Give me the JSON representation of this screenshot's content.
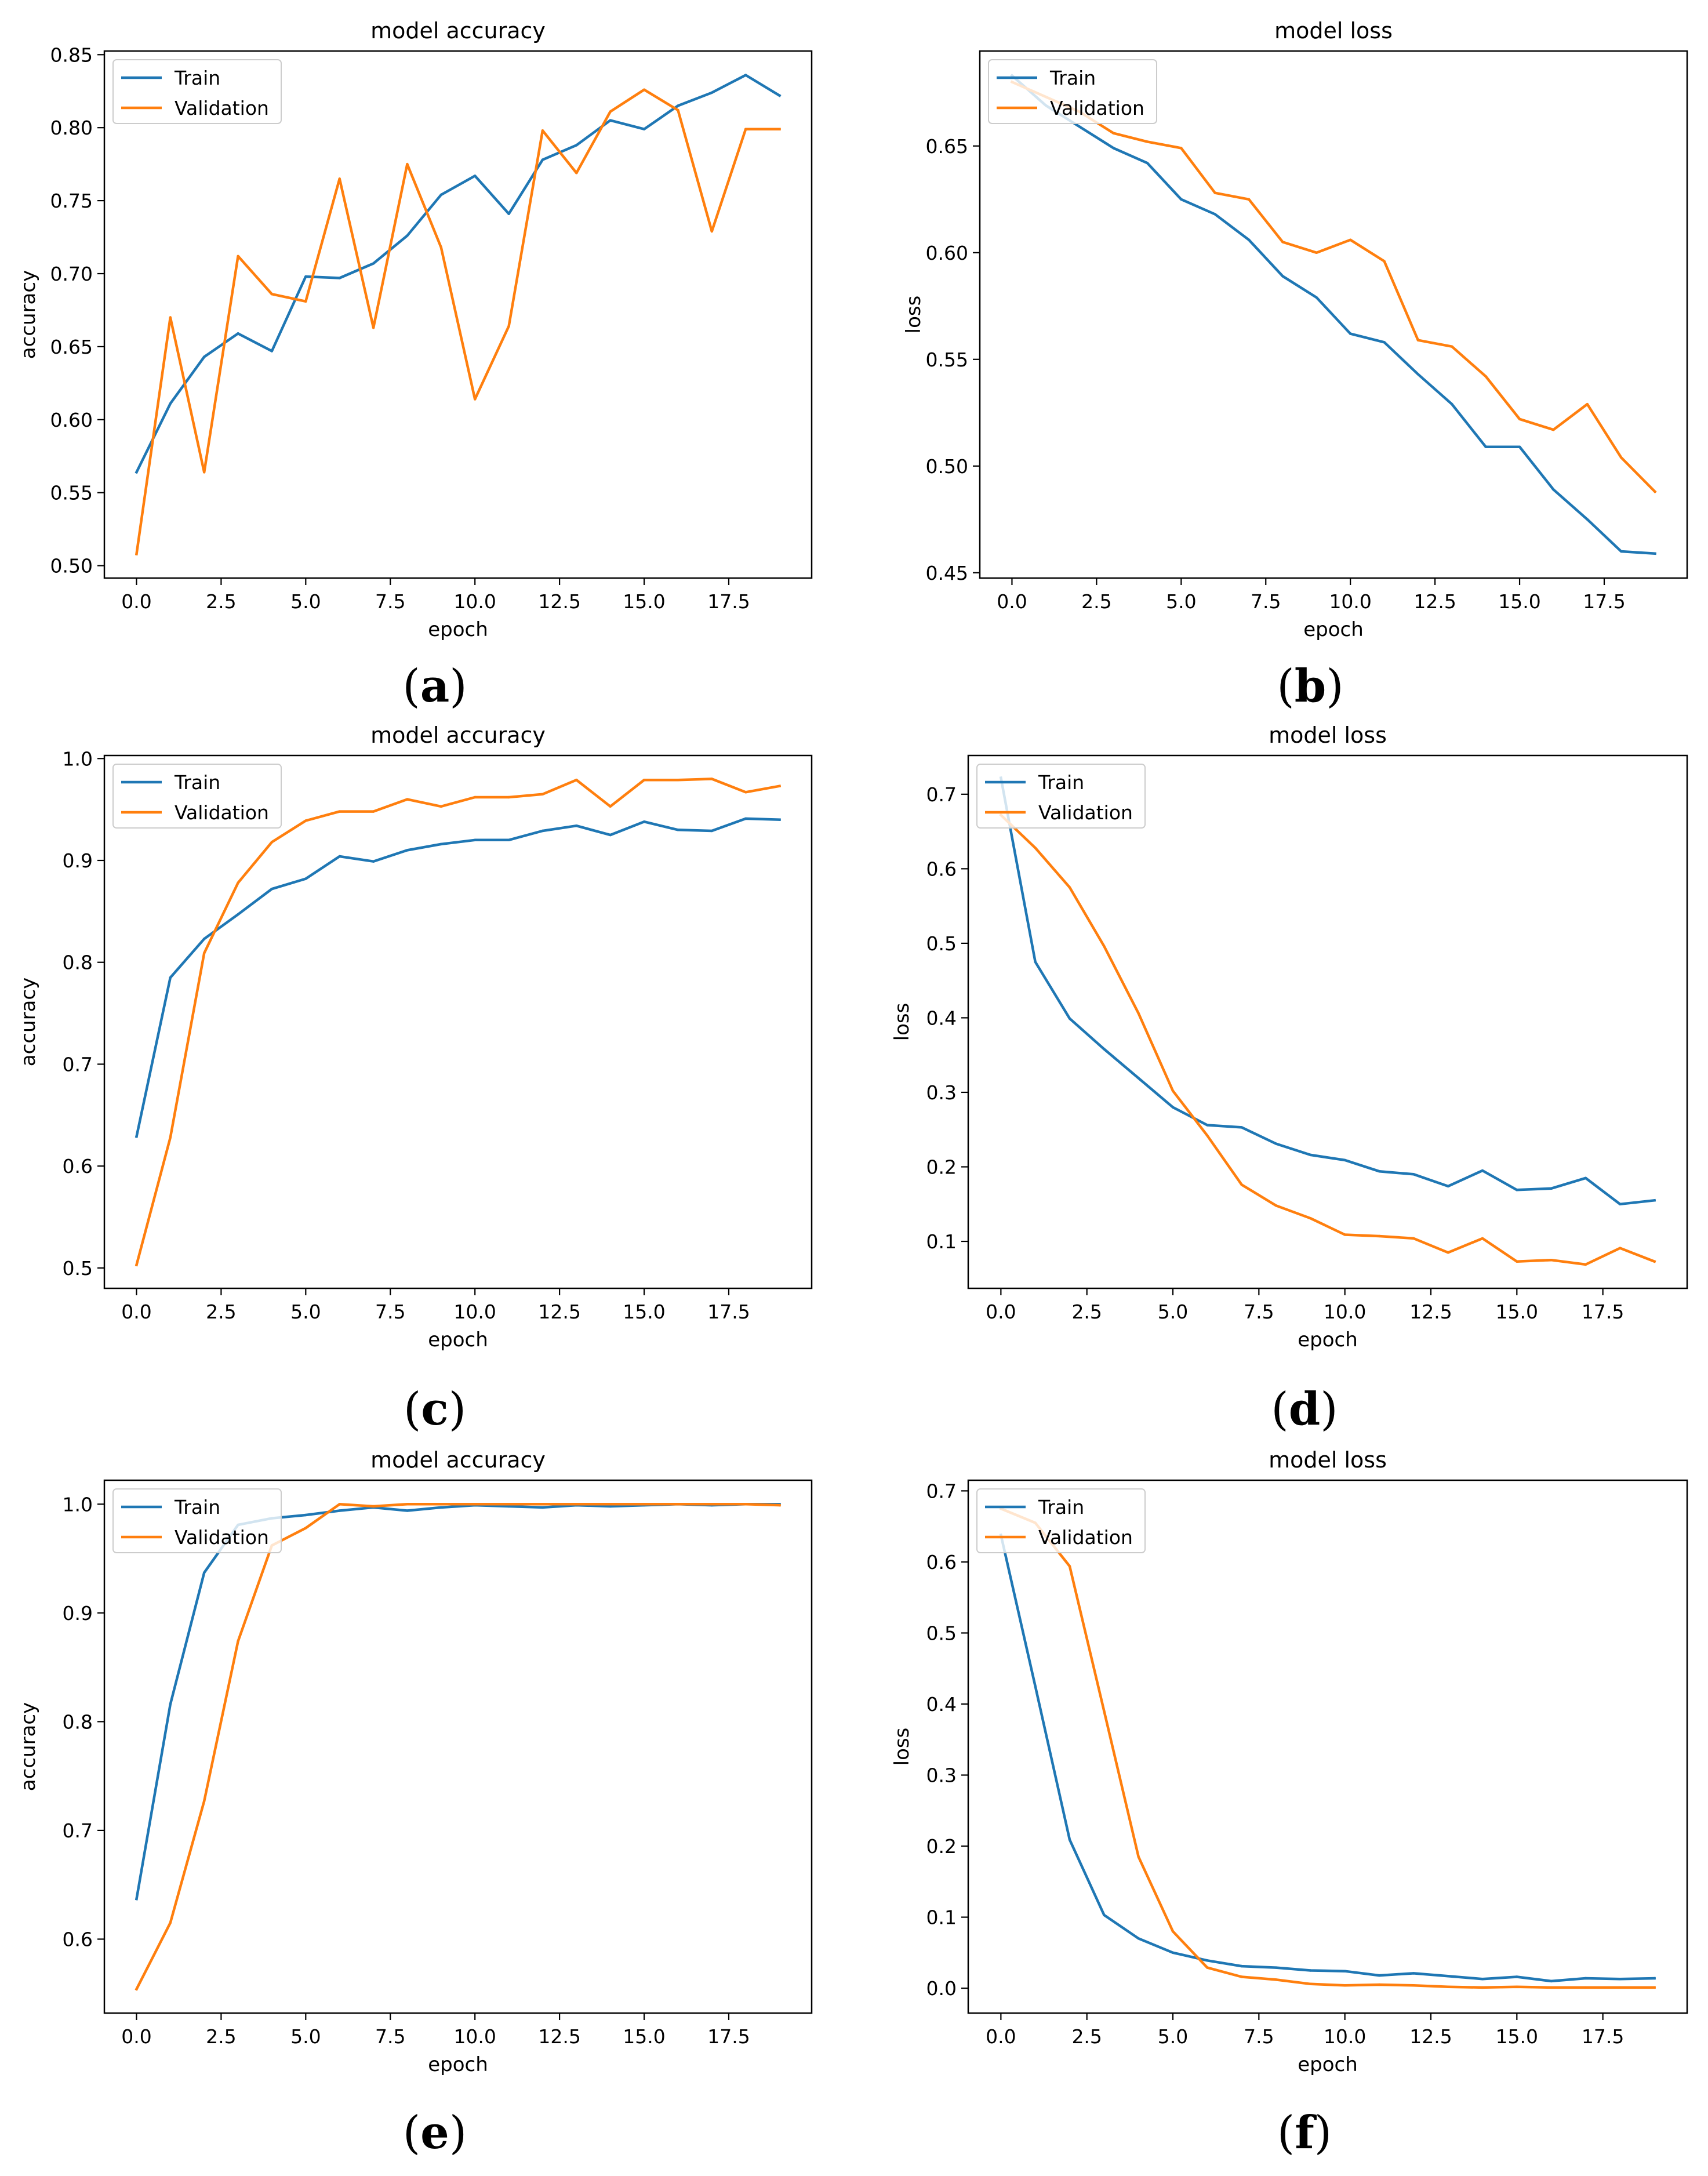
{
  "colors": {
    "train": "#1f77b4",
    "validation": "#ff7f0e",
    "axis": "#000000",
    "legend_border": "#cccccc"
  },
  "chart_data": [
    {
      "type": "line",
      "caption": "(a)",
      "title": "model accuracy",
      "xlabel": "epoch",
      "ylabel": "accuracy",
      "xlim": [
        -0.95,
        19.95
      ],
      "ylim": [
        0.4915,
        0.8525
      ],
      "xticks": [
        "0.0",
        "2.5",
        "5.0",
        "7.5",
        "10.0",
        "12.5",
        "15.0",
        "17.5"
      ],
      "yticks": [
        "0.50",
        "0.55",
        "0.60",
        "0.65",
        "0.70",
        "0.75",
        "0.80",
        "0.85"
      ],
      "legend": "top-left",
      "x": [
        0,
        1,
        2,
        3,
        4,
        5,
        6,
        7,
        8,
        9,
        10,
        11,
        12,
        13,
        14,
        15,
        16,
        17,
        18,
        19
      ],
      "series": [
        {
          "name": "Train",
          "values": [
            0.564,
            0.611,
            0.643,
            0.659,
            0.647,
            0.698,
            0.697,
            0.707,
            0.726,
            0.754,
            0.767,
            0.741,
            0.778,
            0.788,
            0.805,
            0.799,
            0.815,
            0.824,
            0.836,
            0.822
          ]
        },
        {
          "name": "Validation",
          "values": [
            0.508,
            0.67,
            0.564,
            0.712,
            0.686,
            0.681,
            0.765,
            0.663,
            0.775,
            0.718,
            0.614,
            0.664,
            0.798,
            0.769,
            0.811,
            0.826,
            0.812,
            0.729,
            0.799,
            0.799
          ]
        }
      ]
    },
    {
      "type": "line",
      "caption": "(b)",
      "title": "model loss",
      "xlabel": "epoch",
      "ylabel": "loss",
      "xlim": [
        -0.95,
        19.95
      ],
      "ylim": [
        0.4475,
        0.6945
      ],
      "xticks": [
        "0.0",
        "2.5",
        "5.0",
        "7.5",
        "10.0",
        "12.5",
        "15.0",
        "17.5"
      ],
      "yticks": [
        "0.45",
        "0.50",
        "0.55",
        "0.60",
        "0.65"
      ],
      "legend": "top-left",
      "x": [
        0,
        1,
        2,
        3,
        4,
        5,
        6,
        7,
        8,
        9,
        10,
        11,
        12,
        13,
        14,
        15,
        16,
        17,
        18,
        19
      ],
      "series": [
        {
          "name": "Train",
          "values": [
            0.683,
            0.669,
            0.659,
            0.649,
            0.642,
            0.625,
            0.618,
            0.606,
            0.589,
            0.579,
            0.562,
            0.558,
            0.543,
            0.529,
            0.509,
            0.509,
            0.489,
            0.475,
            0.46,
            0.459
          ]
        },
        {
          "name": "Validation",
          "values": [
            0.68,
            0.673,
            0.666,
            0.656,
            0.652,
            0.649,
            0.628,
            0.625,
            0.605,
            0.6,
            0.606,
            0.596,
            0.559,
            0.556,
            0.542,
            0.522,
            0.517,
            0.529,
            0.504,
            0.488
          ]
        }
      ]
    },
    {
      "type": "line",
      "caption": "(c)",
      "title": "model accuracy",
      "xlabel": "epoch",
      "ylabel": "accuracy",
      "xlim": [
        -0.95,
        19.95
      ],
      "ylim": [
        0.48,
        1.003
      ],
      "xticks": [
        "0.0",
        "2.5",
        "5.0",
        "7.5",
        "10.0",
        "12.5",
        "15.0",
        "17.5"
      ],
      "yticks": [
        "0.5",
        "0.6",
        "0.7",
        "0.8",
        "0.9",
        "1.0"
      ],
      "legend": "top-left",
      "x": [
        0,
        1,
        2,
        3,
        4,
        5,
        6,
        7,
        8,
        9,
        10,
        11,
        12,
        13,
        14,
        15,
        16,
        17,
        18,
        19
      ],
      "series": [
        {
          "name": "Train",
          "values": [
            0.629,
            0.785,
            0.823,
            0.847,
            0.872,
            0.882,
            0.904,
            0.899,
            0.91,
            0.916,
            0.92,
            0.92,
            0.929,
            0.934,
            0.925,
            0.938,
            0.93,
            0.929,
            0.941,
            0.94
          ]
        },
        {
          "name": "Validation",
          "values": [
            0.503,
            0.628,
            0.809,
            0.878,
            0.918,
            0.939,
            0.948,
            0.948,
            0.96,
            0.953,
            0.962,
            0.962,
            0.965,
            0.979,
            0.953,
            0.979,
            0.979,
            0.98,
            0.967,
            0.973
          ]
        }
      ]
    },
    {
      "type": "line",
      "caption": "(d)",
      "title": "model loss",
      "xlabel": "epoch",
      "ylabel": "loss",
      "xlim": [
        -0.95,
        19.95
      ],
      "ylim": [
        0.037,
        0.752
      ],
      "xticks": [
        "0.0",
        "2.5",
        "5.0",
        "7.5",
        "10.0",
        "12.5",
        "15.0",
        "17.5"
      ],
      "yticks": [
        "0.1",
        "0.2",
        "0.3",
        "0.4",
        "0.5",
        "0.6",
        "0.7"
      ],
      "legend": "top-left",
      "x": [
        0,
        1,
        2,
        3,
        4,
        5,
        6,
        7,
        8,
        9,
        10,
        11,
        12,
        13,
        14,
        15,
        16,
        17,
        18,
        19
      ],
      "series": [
        {
          "name": "Train",
          "values": [
            0.722,
            0.475,
            0.399,
            0.358,
            0.319,
            0.28,
            0.256,
            0.253,
            0.231,
            0.216,
            0.209,
            0.194,
            0.19,
            0.174,
            0.195,
            0.169,
            0.171,
            0.185,
            0.15,
            0.155
          ]
        },
        {
          "name": "Validation",
          "values": [
            0.672,
            0.628,
            0.575,
            0.496,
            0.406,
            0.302,
            0.242,
            0.176,
            0.148,
            0.131,
            0.109,
            0.107,
            0.104,
            0.085,
            0.104,
            0.073,
            0.075,
            0.069,
            0.091,
            0.073
          ]
        }
      ]
    },
    {
      "type": "line",
      "caption": "(e)",
      "title": "model accuracy",
      "xlabel": "epoch",
      "ylabel": "accuracy",
      "xlim": [
        -0.95,
        19.95
      ],
      "ylim": [
        0.532,
        1.022
      ],
      "xticks": [
        "0.0",
        "2.5",
        "5.0",
        "7.5",
        "10.0",
        "12.5",
        "15.0",
        "17.5"
      ],
      "yticks": [
        "0.6",
        "0.7",
        "0.8",
        "0.9",
        "1.0"
      ],
      "legend": "top-left",
      "x": [
        0,
        1,
        2,
        3,
        4,
        5,
        6,
        7,
        8,
        9,
        10,
        11,
        12,
        13,
        14,
        15,
        16,
        17,
        18,
        19
      ],
      "series": [
        {
          "name": "Train",
          "values": [
            0.637,
            0.816,
            0.937,
            0.981,
            0.987,
            0.99,
            0.994,
            0.997,
            0.994,
            0.997,
            0.999,
            0.998,
            0.997,
            0.999,
            0.998,
            0.999,
            1.0,
            0.999,
            1.0,
            1.0
          ]
        },
        {
          "name": "Validation",
          "values": [
            0.554,
            0.615,
            0.727,
            0.874,
            0.962,
            0.978,
            1.0,
            0.998,
            1.0,
            1.0,
            1.0,
            1.0,
            1.0,
            1.0,
            1.0,
            1.0,
            1.0,
            1.0,
            1.0,
            0.999
          ]
        }
      ]
    },
    {
      "type": "line",
      "caption": "(f)",
      "title": "model loss",
      "xlabel": "epoch",
      "ylabel": "loss",
      "xlim": [
        -0.95,
        19.95
      ],
      "ylim": [
        -0.035,
        0.715
      ],
      "xticks": [
        "0.0",
        "2.5",
        "5.0",
        "7.5",
        "10.0",
        "12.5",
        "15.0",
        "17.5"
      ],
      "yticks": [
        "0.0",
        "0.1",
        "0.2",
        "0.3",
        "0.4",
        "0.5",
        "0.6",
        "0.7"
      ],
      "legend": "top-left",
      "x": [
        0,
        1,
        2,
        3,
        4,
        5,
        6,
        7,
        8,
        9,
        10,
        11,
        12,
        13,
        14,
        15,
        16,
        17,
        18,
        19
      ],
      "series": [
        {
          "name": "Train",
          "values": [
            0.638,
            0.425,
            0.209,
            0.103,
            0.07,
            0.05,
            0.039,
            0.031,
            0.029,
            0.025,
            0.024,
            0.018,
            0.021,
            0.017,
            0.013,
            0.016,
            0.01,
            0.014,
            0.013,
            0.014
          ]
        },
        {
          "name": "Validation",
          "values": [
            0.675,
            0.655,
            0.594,
            0.39,
            0.185,
            0.08,
            0.029,
            0.016,
            0.012,
            0.006,
            0.004,
            0.005,
            0.004,
            0.002,
            0.001,
            0.002,
            0.001,
            0.001,
            0.001,
            0.001
          ]
        }
      ]
    }
  ]
}
